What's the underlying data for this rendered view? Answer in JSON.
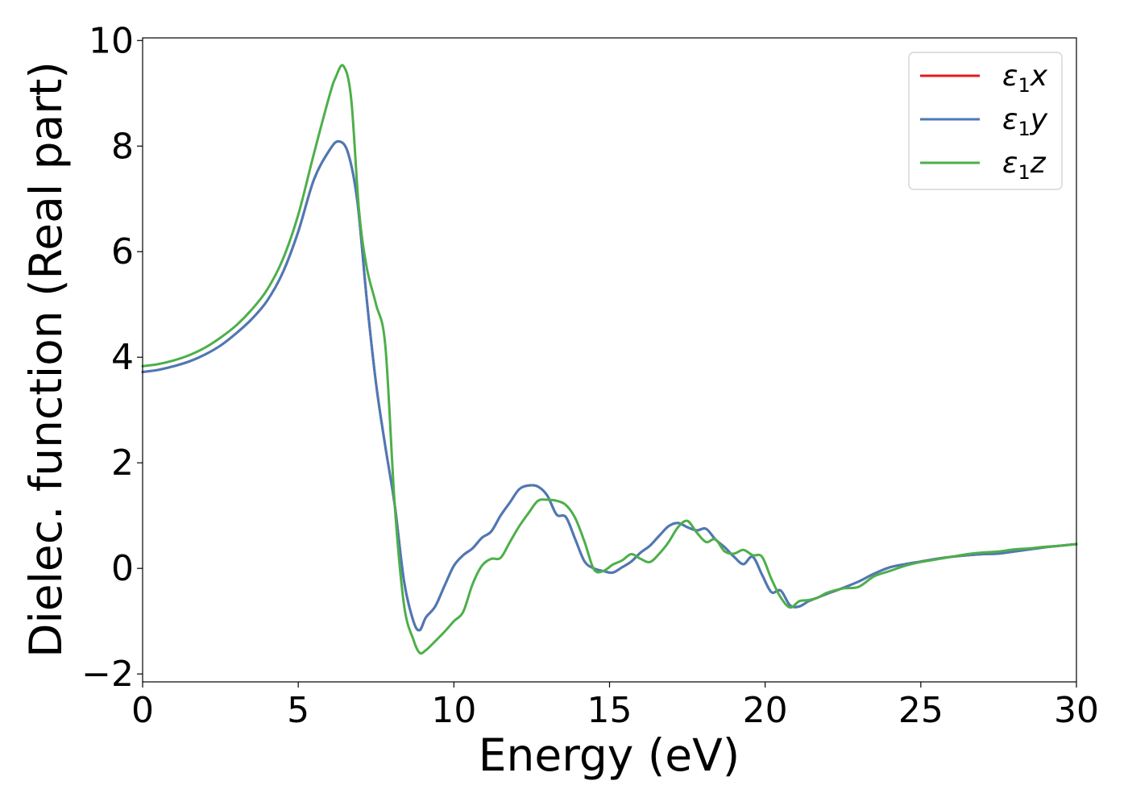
{
  "chart_data": {
    "type": "line",
    "title": "",
    "xlabel": "Energy (eV)",
    "ylabel": "Dielec. function (Real part)",
    "xlim": [
      0,
      30
    ],
    "ylim": [
      -2.15,
      10.05
    ],
    "xticks": [
      0,
      5,
      10,
      15,
      20,
      25,
      30
    ],
    "xtick_labels": [
      "0",
      "5",
      "10",
      "15",
      "20",
      "25",
      "30"
    ],
    "yticks": [
      -2,
      0,
      2,
      4,
      6,
      8,
      10
    ],
    "ytick_labels": [
      "−2",
      "0",
      "2",
      "4",
      "6",
      "8",
      "10"
    ],
    "grid": false,
    "legend_position": "top-right",
    "series": [
      {
        "name": "ε₁x",
        "legend_base": "ε",
        "legend_sub": "1",
        "legend_var": "x",
        "color": "#e41a1c",
        "x": [
          0,
          0.5,
          1,
          1.5,
          2,
          2.5,
          3,
          3.5,
          4,
          4.5,
          5,
          5.5,
          6,
          6.3,
          6.6,
          6.9,
          7.2,
          7.5,
          7.8,
          8.1,
          8.4,
          8.7,
          8.9,
          9.1,
          9.4,
          9.7,
          10,
          10.3,
          10.6,
          10.9,
          11.2,
          11.5,
          11.8,
          12.1,
          12.4,
          12.7,
          13,
          13.3,
          13.6,
          13.9,
          14.2,
          14.5,
          14.8,
          15.1,
          15.4,
          15.7,
          16,
          16.3,
          16.6,
          16.9,
          17.2,
          17.5,
          17.8,
          18.1,
          18.4,
          18.7,
          19,
          19.3,
          19.6,
          19.9,
          20.2,
          20.5,
          20.8,
          21.1,
          21.4,
          21.7,
          22,
          22.5,
          23,
          23.5,
          24,
          24.5,
          25,
          25.5,
          26,
          26.5,
          27,
          27.5,
          28,
          28.5,
          29,
          29.5,
          30
        ],
        "y": [
          3.72,
          3.76,
          3.83,
          3.92,
          4.05,
          4.22,
          4.45,
          4.72,
          5.07,
          5.6,
          6.38,
          7.36,
          7.92,
          8.09,
          7.87,
          6.95,
          5.1,
          3.5,
          2.3,
          1.2,
          -0.25,
          -1.0,
          -1.17,
          -0.93,
          -0.72,
          -0.33,
          0.05,
          0.25,
          0.38,
          0.58,
          0.7,
          1.0,
          1.25,
          1.5,
          1.57,
          1.55,
          1.38,
          1.02,
          0.97,
          0.55,
          0.13,
          0.0,
          -0.05,
          -0.08,
          0.02,
          0.13,
          0.3,
          0.43,
          0.62,
          0.8,
          0.86,
          0.78,
          0.72,
          0.75,
          0.55,
          0.4,
          0.22,
          0.08,
          0.22,
          -0.12,
          -0.45,
          -0.42,
          -0.7,
          -0.72,
          -0.62,
          -0.55,
          -0.48,
          -0.37,
          -0.25,
          -0.1,
          0.02,
          0.08,
          0.13,
          0.18,
          0.22,
          0.25,
          0.27,
          0.28,
          0.32,
          0.36,
          0.4,
          0.43,
          0.46
        ]
      },
      {
        "name": "ε₁y",
        "legend_base": "ε",
        "legend_sub": "1",
        "legend_var": "y",
        "color": "#4a7ab7",
        "x": [
          0,
          0.5,
          1,
          1.5,
          2,
          2.5,
          3,
          3.5,
          4,
          4.5,
          5,
          5.5,
          6,
          6.3,
          6.6,
          6.9,
          7.2,
          7.5,
          7.8,
          8.1,
          8.4,
          8.7,
          8.9,
          9.1,
          9.4,
          9.7,
          10,
          10.3,
          10.6,
          10.9,
          11.2,
          11.5,
          11.8,
          12.1,
          12.4,
          12.7,
          13,
          13.3,
          13.6,
          13.9,
          14.2,
          14.5,
          14.8,
          15.1,
          15.4,
          15.7,
          16,
          16.3,
          16.6,
          16.9,
          17.2,
          17.5,
          17.8,
          18.1,
          18.4,
          18.7,
          19,
          19.3,
          19.6,
          19.9,
          20.2,
          20.5,
          20.8,
          21.1,
          21.4,
          21.7,
          22,
          22.5,
          23,
          23.5,
          24,
          24.5,
          25,
          25.5,
          26,
          26.5,
          27,
          27.5,
          28,
          28.5,
          29,
          29.5,
          30
        ],
        "y": [
          3.72,
          3.76,
          3.83,
          3.92,
          4.05,
          4.22,
          4.45,
          4.72,
          5.07,
          5.6,
          6.38,
          7.36,
          7.92,
          8.09,
          7.87,
          6.95,
          5.1,
          3.5,
          2.3,
          1.2,
          -0.25,
          -1.0,
          -1.17,
          -0.93,
          -0.72,
          -0.33,
          0.05,
          0.25,
          0.38,
          0.58,
          0.7,
          1.0,
          1.25,
          1.5,
          1.57,
          1.55,
          1.38,
          1.02,
          0.97,
          0.55,
          0.13,
          0.0,
          -0.05,
          -0.08,
          0.02,
          0.13,
          0.3,
          0.43,
          0.62,
          0.8,
          0.86,
          0.78,
          0.72,
          0.75,
          0.55,
          0.4,
          0.22,
          0.08,
          0.22,
          -0.12,
          -0.45,
          -0.42,
          -0.7,
          -0.72,
          -0.62,
          -0.55,
          -0.48,
          -0.37,
          -0.25,
          -0.1,
          0.02,
          0.08,
          0.13,
          0.18,
          0.22,
          0.25,
          0.27,
          0.28,
          0.32,
          0.36,
          0.4,
          0.43,
          0.46
        ]
      },
      {
        "name": "ε₁z",
        "legend_base": "ε",
        "legend_sub": "1",
        "legend_var": "z",
        "color": "#4daf4a",
        "x": [
          0,
          0.5,
          1,
          1.5,
          2,
          2.5,
          3,
          3.5,
          4,
          4.5,
          5,
          5.5,
          6,
          6.2,
          6.45,
          6.7,
          6.95,
          7.2,
          7.5,
          7.8,
          8.1,
          8.4,
          8.7,
          8.9,
          9.1,
          9.4,
          9.7,
          10,
          10.3,
          10.6,
          10.9,
          11.2,
          11.5,
          11.8,
          12.1,
          12.4,
          12.7,
          13,
          13.3,
          13.6,
          13.9,
          14.2,
          14.5,
          14.8,
          15.1,
          15.4,
          15.7,
          16,
          16.3,
          16.6,
          16.9,
          17.2,
          17.5,
          17.8,
          18.1,
          18.4,
          18.7,
          19,
          19.3,
          19.6,
          19.9,
          20.2,
          20.5,
          20.8,
          21.1,
          21.4,
          21.7,
          22,
          22.5,
          23,
          23.5,
          24,
          24.5,
          25,
          25.5,
          26,
          26.5,
          27,
          27.5,
          28,
          28.5,
          29,
          29.5,
          30
        ],
        "y": [
          3.83,
          3.87,
          3.94,
          4.04,
          4.18,
          4.37,
          4.6,
          4.9,
          5.28,
          5.85,
          6.7,
          7.85,
          8.95,
          9.3,
          9.52,
          8.9,
          6.8,
          5.7,
          5.0,
          4.2,
          1.2,
          -0.7,
          -1.35,
          -1.6,
          -1.55,
          -1.38,
          -1.2,
          -1.0,
          -0.82,
          -0.3,
          0.05,
          0.18,
          0.2,
          0.5,
          0.8,
          1.05,
          1.28,
          1.3,
          1.28,
          1.2,
          0.95,
          0.5,
          -0.02,
          -0.05,
          0.07,
          0.15,
          0.27,
          0.18,
          0.12,
          0.28,
          0.5,
          0.78,
          0.9,
          0.68,
          0.5,
          0.55,
          0.32,
          0.28,
          0.35,
          0.25,
          0.22,
          -0.2,
          -0.55,
          -0.74,
          -0.62,
          -0.6,
          -0.55,
          -0.46,
          -0.38,
          -0.35,
          -0.15,
          -0.05,
          0.05,
          0.12,
          0.17,
          0.22,
          0.27,
          0.3,
          0.32,
          0.36,
          0.38,
          0.41,
          0.43,
          0.46
        ]
      }
    ]
  }
}
